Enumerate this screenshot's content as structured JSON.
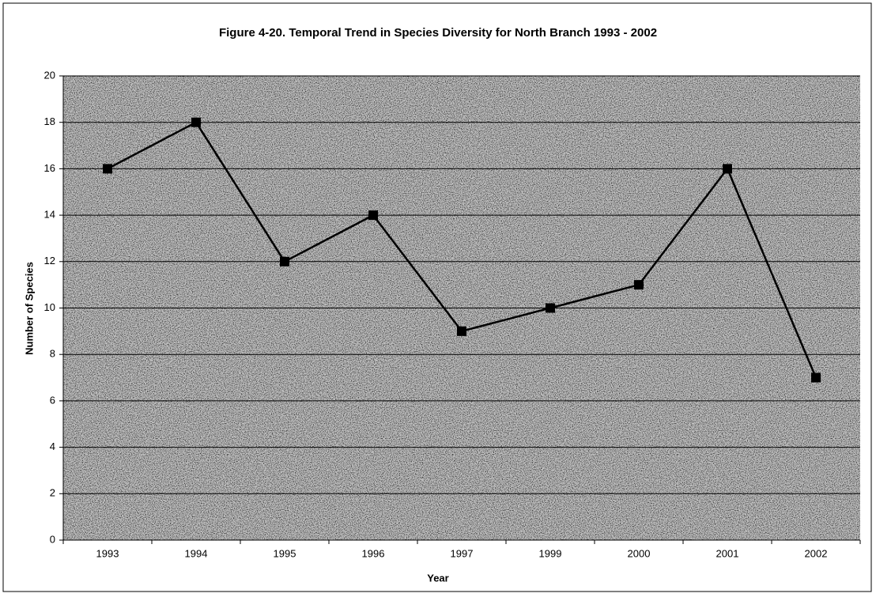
{
  "chart_data": {
    "type": "line",
    "title": "Figure 4-20.  Temporal Trend in Species Diversity for North Branch 1993 - 2002",
    "x_label": "Year",
    "y_label": "Number of Species",
    "categories": [
      "1993",
      "1994",
      "1995",
      "1996",
      "1997",
      "1999",
      "2000",
      "2001",
      "2002"
    ],
    "values": [
      16,
      18,
      12,
      14,
      9,
      10,
      11,
      16,
      7
    ],
    "color": "#000000",
    "ylim": [
      0,
      20
    ],
    "yticks": [
      0,
      2,
      4,
      6,
      8,
      10,
      12,
      14,
      16,
      18,
      20
    ],
    "grid": true
  }
}
